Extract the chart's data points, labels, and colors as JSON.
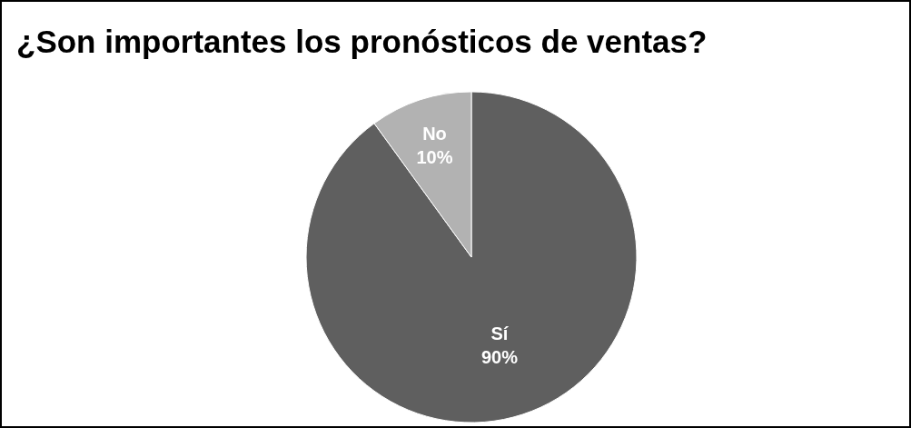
{
  "chart_data": {
    "type": "pie",
    "title": "¿Son importantes los pronósticos de ventas?",
    "categories": [
      "Sí",
      "No"
    ],
    "values": [
      90,
      10
    ],
    "colors": [
      "#5f5f5f",
      "#b2b2b2"
    ],
    "value_labels": [
      "90%",
      "10%"
    ],
    "legend": false
  }
}
